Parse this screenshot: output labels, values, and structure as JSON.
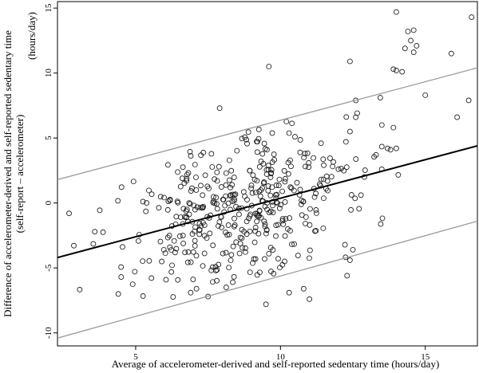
{
  "chart_data": {
    "type": "scatter",
    "xlabel": "Average of accelerometer-derived and self-reported sedentary time (hours/day)",
    "ylabel_line1": "Difference of accelerometer-derived and self-reported sedentary time",
    "ylabel_line2": "(self-report – accelerometer)",
    "ylabel_unit": "(hours/day)",
    "xlim": [
      2.3,
      16.8
    ],
    "ylim": [
      -11.0,
      15.5
    ],
    "xticks": [
      5,
      10,
      15
    ],
    "yticks": [
      -10,
      -5,
      0,
      5,
      10,
      15
    ],
    "grid": false,
    "lines": [
      {
        "name": "regression",
        "x": [
          2.3,
          16.8
        ],
        "y": [
          -4.2,
          4.4
        ],
        "color": "#000000",
        "width": 2
      },
      {
        "name": "upper-limit",
        "x": [
          2.3,
          16.8
        ],
        "y": [
          1.8,
          10.4
        ],
        "color": "#9a9a9a",
        "width": 1.3
      },
      {
        "name": "lower-limit",
        "x": [
          2.3,
          16.8
        ],
        "y": [
          -10.4,
          -1.4
        ],
        "color": "#9a9a9a",
        "width": 1.3
      }
    ],
    "outliers": {
      "x": [
        14.0,
        14.4,
        14.6,
        14.5,
        14.3,
        14.6,
        14.7,
        16.6,
        15.9,
        16.1,
        16.5,
        14.0,
        13.9,
        14.2,
        12.4,
        9.6,
        12.6,
        7.9,
        12.6,
        12.4,
        13.9,
        13.7,
        12.0,
        13.3,
        15.0,
        13.5,
        13.8,
        14.0,
        11.4,
        4.4,
        7.5,
        7.1,
        6.9,
        9.5,
        10.3,
        11.0,
        10.8,
        12.3,
        12.5,
        12.4,
        2.7,
        5.9,
        4.5
      ],
      "y": [
        14.7,
        13.2,
        13.3,
        12.5,
        11.9,
        11.6,
        12.1,
        14.3,
        11.5,
        6.6,
        7.9,
        10.2,
        10.3,
        10.1,
        10.9,
        10.5,
        6.6,
        7.3,
        7.9,
        5.5,
        5.8,
        4.2,
        2.6,
        3.7,
        8.3,
        6.0,
        4.1,
        4.2,
        4.6,
        -7.0,
        -7.2,
        -6.6,
        -6.9,
        -7.8,
        -6.9,
        -7.4,
        -6.6,
        -5.6,
        -3.6,
        -4.4,
        -0.8,
        -4.5,
        -5.7
      ]
    },
    "seed_points": 420,
    "seed": 7
  }
}
